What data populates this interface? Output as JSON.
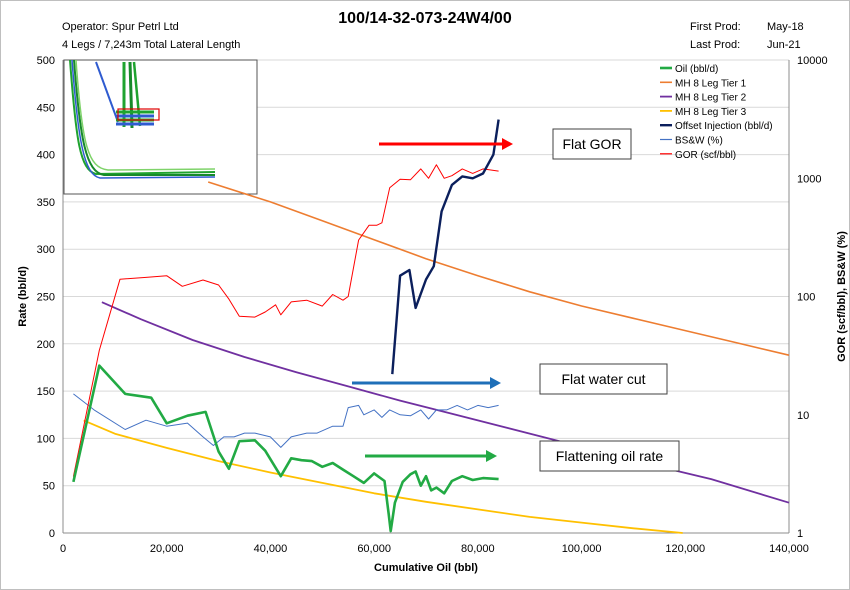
{
  "header": {
    "operator": "Operator: Spur Petrl Ltd",
    "legs": "4 Legs / 7,243m Total Lateral Length",
    "first_prod_label": "First Prod:",
    "first_prod_value": "May-18",
    "last_prod_label": "Last Prod:",
    "last_prod_value": "Jun-21"
  },
  "chart_data": {
    "type": "line",
    "title": "100/14-32-073-24W4/00",
    "xlabel": "Cumulative  Oil (bbl)",
    "ylabel": "Rate (bbl/d)",
    "y2label": "GOR (scf/bbl), BS&W (%)",
    "xlim": [
      0,
      140000
    ],
    "ylim": [
      0,
      500
    ],
    "y2lim": [
      1,
      10000
    ],
    "y2scale": "log",
    "x_ticks": [
      "0",
      "20,000",
      "40,000",
      "60,000",
      "80,000",
      "100,000",
      "120,000",
      "140,000"
    ],
    "y_ticks": [
      "0",
      "50",
      "100",
      "150",
      "200",
      "250",
      "300",
      "350",
      "400",
      "450",
      "500"
    ],
    "y2_ticks": [
      "1",
      "10",
      "100",
      "1000",
      "10000"
    ],
    "grid": "horizontal major",
    "legend_position": "top-right",
    "colors": {
      "oil": "#22aa44",
      "tier1": "#ed7d31",
      "tier2": "#7030a0",
      "tier3": "#ffc000",
      "injection": "#0b1f5c",
      "bsw": "#4472c4",
      "gor": "#ff0000",
      "arrow_gor": "#ff0000",
      "arrow_water": "#1f6fb8",
      "arrow_oil": "#22aa44"
    },
    "series": [
      {
        "name": "Oil (bbl/d)",
        "key": "oil",
        "axis": "left",
        "x": [
          2000,
          7000,
          12000,
          17000,
          20000,
          24000,
          27500,
          30000,
          32000,
          34000,
          37000,
          39000,
          42000,
          44000,
          46000,
          48000,
          50000,
          52000,
          54000,
          56000,
          58000,
          60000,
          62000,
          62800,
          63200,
          64000,
          65500,
          67000,
          68000,
          69000,
          70000,
          71000,
          72000,
          73500,
          75000,
          77000,
          79000,
          81000,
          84000
        ],
        "y": [
          54,
          177,
          147,
          143,
          116,
          124,
          128,
          86,
          68,
          97,
          98,
          87,
          60,
          79,
          77,
          76,
          70,
          74,
          67,
          60,
          53,
          63,
          55,
          20,
          2,
          32,
          54,
          62,
          65,
          50,
          60,
          45,
          48,
          42,
          55,
          60,
          56,
          58,
          57
        ]
      },
      {
        "name": "MH 8 Leg Tier 1",
        "key": "tier1",
        "axis": "left",
        "x": [
          28000,
          40000,
          50000,
          60000,
          70000,
          80000,
          90000,
          100000,
          110000,
          120000,
          130000,
          140000
        ],
        "y": [
          371,
          350,
          330,
          310,
          290,
          272,
          255,
          240,
          227,
          214,
          201,
          188
        ]
      },
      {
        "name": "MH 8 Leg Tier 2",
        "key": "tier2",
        "axis": "left",
        "x": [
          7500,
          15000,
          25000,
          35000,
          45000,
          55000,
          65000,
          75000,
          85000,
          95000,
          105000,
          115000,
          125000,
          140000
        ],
        "y": [
          244,
          226,
          204,
          186,
          170,
          155,
          140,
          126,
          112,
          98,
          84,
          70,
          57,
          32
        ]
      },
      {
        "name": "MH 8 Leg Tier 3",
        "key": "tier3",
        "axis": "left",
        "x": [
          4000,
          10000,
          20000,
          30000,
          40000,
          50000,
          60000,
          70000,
          80000,
          90000,
          100000,
          110000,
          119500
        ],
        "y": [
          119,
          105,
          90,
          76,
          64,
          53,
          42,
          33,
          25,
          17,
          11,
          5,
          0
        ]
      },
      {
        "name": "Offset Injection (bbl/d)",
        "key": "injection",
        "axis": "left",
        "x": [
          63500,
          65000,
          66800,
          68000,
          70000,
          71500,
          73000,
          75000,
          77000,
          79000,
          81000,
          83000,
          84000
        ],
        "y": [
          168,
          272,
          278,
          238,
          268,
          282,
          340,
          368,
          377,
          375,
          380,
          400,
          437
        ]
      },
      {
        "name": "BS&W (%)",
        "key": "bsw",
        "axis": "right",
        "x": [
          2000,
          6000,
          12000,
          16000,
          20000,
          24000,
          27000,
          29000,
          31000,
          33000,
          35000,
          37000,
          40000,
          42000,
          44000,
          47000,
          49000,
          52000,
          54000,
          55000,
          57000,
          58000,
          60000,
          61500,
          63000,
          65000,
          67000,
          69000,
          70500,
          72000,
          74000,
          76000,
          78000,
          80000,
          82000,
          84000
        ],
        "y": [
          15,
          11,
          7.5,
          9,
          8,
          8.5,
          6.5,
          5.5,
          6.5,
          6.5,
          7,
          7,
          6.5,
          5.3,
          6.5,
          7,
          7,
          8,
          8,
          11.5,
          12,
          10,
          11,
          9.5,
          11,
          10,
          9.8,
          11,
          9.2,
          11,
          11,
          12,
          11,
          12,
          11.5,
          12
        ]
      },
      {
        "name": "GOR (scf/bbl)",
        "key": "gor",
        "axis": "right",
        "x": [
          2000,
          7000,
          11000,
          16000,
          20000,
          23000,
          27000,
          30000,
          32000,
          34000,
          37000,
          39000,
          41000,
          42000,
          44000,
          47000,
          50000,
          52000,
          54000,
          55000,
          57000,
          59000,
          60500,
          61500,
          63000,
          65000,
          67000,
          69000,
          70500,
          72000,
          73500,
          75000,
          77000,
          79000,
          81000,
          84000
        ],
        "y": [
          3,
          35,
          140,
          145,
          150,
          122,
          138,
          125,
          95,
          68,
          67,
          74,
          85,
          70,
          90,
          93,
          83,
          104,
          93,
          100,
          300,
          400,
          400,
          420,
          830,
          980,
          970,
          1200,
          1000,
          1300,
          1000,
          1050,
          1200,
          1100,
          1200,
          1150
        ]
      }
    ],
    "annotations": [
      {
        "key": "gor",
        "text": "Flat GOR"
      },
      {
        "key": "water",
        "text": "Flat water cut"
      },
      {
        "key": "oil",
        "text": "Flattening oil rate"
      }
    ]
  }
}
